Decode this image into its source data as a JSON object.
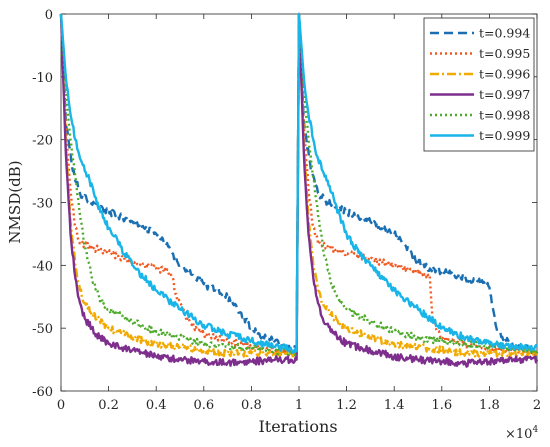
{
  "chart_data": {
    "type": "line",
    "title": "",
    "xlabel": "Iterations",
    "ylabel": "NMSD(dB)",
    "x_exponent_label": "×10",
    "x_exponent_power": "4",
    "xlim": [
      0,
      2
    ],
    "ylim": [
      -60,
      0
    ],
    "xticks": [
      0,
      0.2,
      0.4,
      0.6,
      0.8,
      1,
      1.2,
      1.4,
      1.6,
      1.8,
      2
    ],
    "xtick_labels": [
      "0",
      "0.2",
      "0.4",
      "0.6",
      "0.8",
      "1",
      "1.2",
      "1.4",
      "1.6",
      "1.8",
      "2"
    ],
    "yticks": [
      0,
      -10,
      -20,
      -30,
      -40,
      -50,
      -60
    ],
    "ytick_labels": [
      "0",
      "-10",
      "-20",
      "-30",
      "-40",
      "-50",
      "-60"
    ],
    "grid": false,
    "legend_position": "top-right",
    "series": [
      {
        "name": "t=0.994",
        "color": "#1a6fb3",
        "dash": "dashed",
        "x": [
          0,
          0.02,
          0.05,
          0.08,
          0.12,
          0.2,
          0.3,
          0.4,
          0.45,
          0.5,
          0.55,
          0.6,
          0.65,
          0.7,
          0.75,
          0.8,
          0.85,
          0.9,
          0.95,
          0.99,
          1.0,
          1.02,
          1.05,
          1.08,
          1.12,
          1.2,
          1.3,
          1.4,
          1.45,
          1.5,
          1.55,
          1.6,
          1.65,
          1.7,
          1.75,
          1.8,
          1.81,
          1.83,
          1.87,
          1.92,
          1.96,
          2.0
        ],
        "y": [
          0,
          -17,
          -25,
          -28.5,
          -30,
          -31.5,
          -33,
          -35,
          -37,
          -40,
          -41.5,
          -43,
          -44,
          -45,
          -47.5,
          -50,
          -51.5,
          -52,
          -53,
          -53.5,
          0,
          -17,
          -25,
          -28.5,
          -30,
          -31.5,
          -33,
          -35,
          -37,
          -39.5,
          -40.5,
          -41,
          -41.5,
          -42,
          -42.5,
          -43.5,
          -46,
          -50,
          -52,
          -53,
          -53,
          -54
        ]
      },
      {
        "name": "t=0.995",
        "color": "#f05a22",
        "dash": "dotted",
        "x": [
          0,
          0.02,
          0.04,
          0.06,
          0.08,
          0.12,
          0.2,
          0.3,
          0.4,
          0.45,
          0.47,
          0.48,
          0.5,
          0.52,
          0.55,
          0.6,
          0.7,
          0.8,
          0.9,
          0.99,
          1.0,
          1.02,
          1.04,
          1.06,
          1.08,
          1.12,
          1.2,
          1.3,
          1.4,
          1.5,
          1.55,
          1.56,
          1.58,
          1.6,
          1.7,
          1.8,
          1.9,
          1.99,
          2.0
        ],
        "y": [
          0,
          -18,
          -28,
          -34,
          -36.5,
          -37,
          -38,
          -39.5,
          -40.5,
          -41,
          -42,
          -44.5,
          -46,
          -48,
          -49.5,
          -51,
          -52,
          -53,
          -53.5,
          -54,
          0,
          -18,
          -28,
          -34,
          -36.5,
          -37,
          -38,
          -39,
          -40,
          -41,
          -42,
          -48,
          -50.5,
          -51.5,
          -52.5,
          -53,
          -53.5,
          -54,
          -54
        ]
      },
      {
        "name": "t=0.996",
        "color": "#f2a900",
        "dash": "dashdot",
        "x": [
          0,
          0.02,
          0.04,
          0.06,
          0.08,
          0.1,
          0.15,
          0.2,
          0.3,
          0.4,
          0.5,
          0.6,
          0.7,
          0.8,
          0.9,
          0.99,
          1.0,
          1.02,
          1.04,
          1.06,
          1.08,
          1.1,
          1.15,
          1.2,
          1.3,
          1.4,
          1.5,
          1.6,
          1.7,
          1.8,
          1.9,
          2.0
        ],
        "y": [
          0,
          -20,
          -33,
          -40,
          -44,
          -46,
          -48.5,
          -50,
          -51.5,
          -52.5,
          -53,
          -53.5,
          -54,
          -54,
          -54,
          -54,
          0,
          -20,
          -33,
          -40,
          -44,
          -46,
          -48.5,
          -50,
          -51.5,
          -52.5,
          -53,
          -53.5,
          -54,
          -54,
          -54,
          -54
        ]
      },
      {
        "name": "t=0.997",
        "color": "#7e2f8e",
        "dash": "solid",
        "x": [
          0,
          0.02,
          0.04,
          0.06,
          0.08,
          0.1,
          0.15,
          0.2,
          0.3,
          0.4,
          0.5,
          0.6,
          0.7,
          0.8,
          0.9,
          0.99,
          1.0,
          1.02,
          1.04,
          1.06,
          1.08,
          1.1,
          1.15,
          1.2,
          1.3,
          1.4,
          1.5,
          1.6,
          1.7,
          1.8,
          1.9,
          2.0
        ],
        "y": [
          0,
          -22,
          -35,
          -42,
          -46,
          -48.5,
          -51,
          -52.5,
          -53.5,
          -54.5,
          -55,
          -55.3,
          -55.5,
          -55.3,
          -55,
          -55,
          0,
          -22,
          -35,
          -42,
          -46,
          -48.5,
          -51,
          -52.5,
          -53.5,
          -54.5,
          -55,
          -55.3,
          -55.6,
          -55.3,
          -55,
          -55
        ]
      },
      {
        "name": "t=0.998",
        "color": "#4daa2a",
        "dash": "dotted",
        "x": [
          0,
          0.02,
          0.04,
          0.06,
          0.08,
          0.1,
          0.13,
          0.16,
          0.2,
          0.3,
          0.4,
          0.5,
          0.6,
          0.7,
          0.8,
          0.9,
          0.99,
          1.0,
          1.02,
          1.04,
          1.06,
          1.08,
          1.1,
          1.13,
          1.16,
          1.2,
          1.3,
          1.4,
          1.5,
          1.6,
          1.7,
          1.8,
          1.9,
          2.0
        ],
        "y": [
          0,
          -12,
          -20,
          -26,
          -32,
          -37,
          -42,
          -45,
          -47,
          -49,
          -50.5,
          -51.5,
          -52.5,
          -53,
          -53,
          -53.5,
          -54,
          0,
          -12,
          -20,
          -26,
          -32,
          -37,
          -42,
          -45,
          -47,
          -49,
          -50.5,
          -51.5,
          -52,
          -52.5,
          -53,
          -53,
          -54
        ]
      },
      {
        "name": "t=0.999",
        "color": "#19b4e8",
        "dash": "solid",
        "x": [
          0,
          0.02,
          0.04,
          0.06,
          0.08,
          0.1,
          0.12,
          0.15,
          0.2,
          0.25,
          0.3,
          0.4,
          0.5,
          0.6,
          0.7,
          0.8,
          0.9,
          0.99,
          1.0,
          1.02,
          1.04,
          1.06,
          1.08,
          1.1,
          1.12,
          1.15,
          1.2,
          1.25,
          1.3,
          1.4,
          1.5,
          1.6,
          1.7,
          1.8,
          1.9,
          2.0
        ],
        "y": [
          0,
          -10,
          -16,
          -20,
          -23,
          -25,
          -26.5,
          -30,
          -34,
          -37,
          -40,
          -44,
          -47,
          -49.5,
          -51,
          -52,
          -53,
          -53.5,
          0,
          -10,
          -16,
          -20,
          -23,
          -25,
          -26.5,
          -30,
          -35,
          -38,
          -40,
          -44,
          -47,
          -50,
          -51.5,
          -52.5,
          -53,
          -53
        ]
      }
    ]
  }
}
